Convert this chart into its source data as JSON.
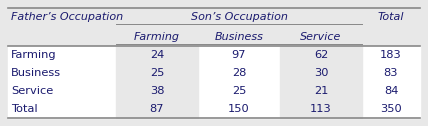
{
  "header_row1_col0": "Father’s Occupation",
  "header_row1_sons": "Son’s Occupation",
  "header_row1_total": "Total",
  "header_row2": [
    "Farming",
    "Business",
    "Service"
  ],
  "rows": [
    [
      "Farming",
      "24",
      "97",
      "62",
      "183"
    ],
    [
      "Business",
      "25",
      "28",
      "30",
      "83"
    ],
    [
      "Service",
      "38",
      "25",
      "21",
      "84"
    ],
    [
      "Total",
      "87",
      "150",
      "113",
      "350"
    ]
  ],
  "bg_header": "#e8e8e8",
  "bg_body_white": "#ffffff",
  "bg_body_gray": "#e8e8e8",
  "text_color": "#1a1a6e",
  "border_color": "#888888",
  "figure_bg": "#e8e8e8"
}
